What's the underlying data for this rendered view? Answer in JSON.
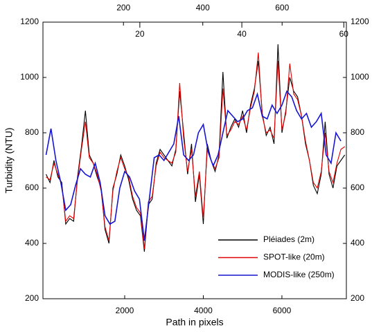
{
  "chart_data": {
    "type": "line",
    "ylabel": "Turbidity (NTU)",
    "xlabel": "Path in pixels",
    "xlim": [
      -80,
      7640
    ],
    "xticks": [
      2000,
      4000,
      6000
    ],
    "x2lim": [
      -3,
      762
    ],
    "x2ticks": [
      200,
      400,
      600
    ],
    "x3lim": [
      1,
      60.5
    ],
    "x3ticks": [
      20,
      40,
      60
    ],
    "ylim": [
      200,
      1200
    ],
    "yticks": [
      200,
      400,
      600,
      800,
      1000,
      1200
    ],
    "legend": "lower right",
    "series": [
      {
        "name": "Pléiades (2m)",
        "color": "#000000",
        "x": [
          0,
          100,
          200,
          300,
          400,
          500,
          600,
          700,
          800,
          900,
          1000,
          1100,
          1200,
          1300,
          1400,
          1500,
          1600,
          1700,
          1800,
          1900,
          2000,
          2100,
          2200,
          2300,
          2400,
          2500,
          2600,
          2700,
          2800,
          2900,
          3000,
          3100,
          3200,
          3300,
          3400,
          3500,
          3600,
          3700,
          3800,
          3900,
          4000,
          4100,
          4200,
          4300,
          4400,
          4500,
          4600,
          4700,
          4800,
          4900,
          5000,
          5100,
          5200,
          5300,
          5400,
          5500,
          5600,
          5700,
          5800,
          5900,
          6000,
          6100,
          6200,
          6300,
          6400,
          6500,
          6600,
          6700,
          6800,
          6900,
          7000,
          7100,
          7200,
          7300,
          7400,
          7500,
          7600
        ],
        "values": [
          650,
          620,
          700,
          640,
          620,
          470,
          490,
          480,
          640,
          750,
          880,
          720,
          690,
          640,
          600,
          450,
          400,
          600,
          650,
          720,
          680,
          630,
          560,
          520,
          500,
          370,
          540,
          560,
          690,
          740,
          720,
          700,
          680,
          740,
          950,
          800,
          650,
          760,
          550,
          650,
          470,
          760,
          700,
          660,
          720,
          1020,
          780,
          820,
          850,
          820,
          880,
          800,
          900,
          960,
          1060,
          870,
          790,
          820,
          760,
          1120,
          800,
          880,
          1000,
          950,
          930,
          860,
          760,
          700,
          610,
          580,
          650,
          840,
          650,
          600,
          680,
          700,
          720
        ]
      },
      {
        "name": "SPOT-like (20m)",
        "color": "#e00000",
        "x": [
          0,
          100,
          200,
          300,
          400,
          500,
          600,
          700,
          800,
          900,
          1000,
          1100,
          1200,
          1300,
          1400,
          1500,
          1600,
          1700,
          1800,
          1900,
          2000,
          2100,
          2200,
          2300,
          2400,
          2500,
          2600,
          2700,
          2800,
          2900,
          3000,
          3100,
          3200,
          3300,
          3400,
          3500,
          3600,
          3700,
          3800,
          3900,
          4000,
          4100,
          4200,
          4300,
          4400,
          4500,
          4600,
          4700,
          4800,
          4900,
          5000,
          5100,
          5200,
          5300,
          5400,
          5500,
          5600,
          5700,
          5800,
          5900,
          6000,
          6100,
          6200,
          6300,
          6400,
          6500,
          6600,
          6700,
          6800,
          6900,
          7000,
          7100,
          7200,
          7300,
          7400,
          7500,
          7600
        ],
        "values": [
          640,
          630,
          690,
          650,
          610,
          480,
          500,
          490,
          630,
          740,
          840,
          710,
          690,
          650,
          590,
          460,
          410,
          590,
          660,
          710,
          670,
          640,
          570,
          530,
          510,
          380,
          550,
          570,
          680,
          730,
          710,
          700,
          690,
          730,
          980,
          780,
          660,
          740,
          570,
          660,
          490,
          740,
          700,
          670,
          710,
          960,
          790,
          810,
          840,
          830,
          860,
          810,
          890,
          950,
          1090,
          860,
          800,
          810,
          780,
          1060,
          810,
          870,
          1050,
          940,
          920,
          860,
          770,
          700,
          620,
          600,
          660,
          800,
          660,
          620,
          690,
          740,
          750
        ]
      },
      {
        "name": "MODIS-like (250m)",
        "color": "#1414d2",
        "x": [
          0,
          125,
          250,
          375,
          500,
          625,
          750,
          875,
          1000,
          1125,
          1250,
          1375,
          1500,
          1625,
          1750,
          1875,
          2000,
          2125,
          2250,
          2375,
          2500,
          2625,
          2750,
          2875,
          3000,
          3125,
          3250,
          3375,
          3500,
          3625,
          3750,
          3875,
          4000,
          4125,
          4250,
          4375,
          4500,
          4625,
          4750,
          4875,
          5000,
          5125,
          5250,
          5375,
          5500,
          5625,
          5750,
          5875,
          6000,
          6125,
          6250,
          6375,
          6500,
          6625,
          6750,
          6875,
          7000,
          7125,
          7250,
          7375,
          7500
        ],
        "values": [
          720,
          815,
          700,
          620,
          520,
          540,
          610,
          670,
          650,
          640,
          690,
          620,
          500,
          470,
          480,
          600,
          660,
          640,
          590,
          560,
          410,
          560,
          710,
          720,
          700,
          730,
          760,
          860,
          720,
          700,
          720,
          800,
          830,
          730,
          680,
          720,
          800,
          880,
          860,
          840,
          850,
          880,
          890,
          940,
          860,
          850,
          900,
          870,
          900,
          950,
          930,
          880,
          850,
          870,
          820,
          840,
          870,
          720,
          690,
          800,
          770
        ]
      }
    ]
  }
}
